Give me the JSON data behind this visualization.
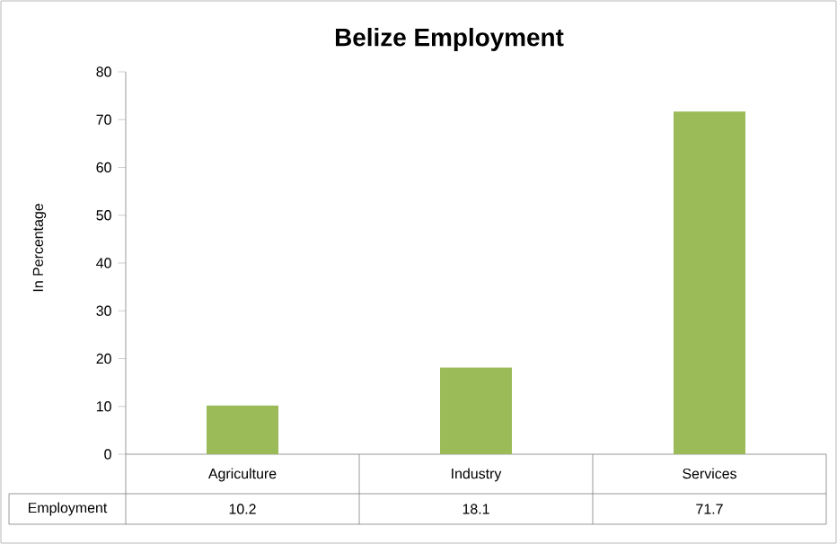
{
  "chart_data": {
    "type": "bar",
    "title": "Belize Employment",
    "ylabel": "In Percentage",
    "categories": [
      "Agriculture",
      "Industry",
      "Services"
    ],
    "series": [
      {
        "name": "Employment",
        "color": "#9bbb59",
        "values": [
          10.2,
          18.1,
          71.7
        ]
      }
    ],
    "ylim": [
      0,
      80
    ],
    "yticks": [
      0,
      10,
      20,
      30,
      40,
      50,
      60,
      70,
      80
    ],
    "data_labels": true
  }
}
